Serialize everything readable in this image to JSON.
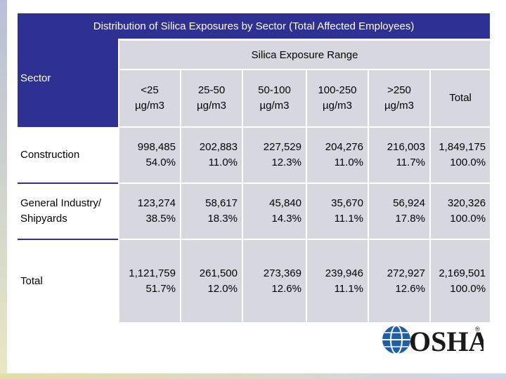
{
  "table": {
    "title": "Distribution of Silica Exposures by Sector (Total Affected Employees)",
    "sector_label": "Sector",
    "range_label": "Silica Exposure Range",
    "columns": [
      {
        "line1": "<25",
        "line2": "µg/m3"
      },
      {
        "line1": "25-50",
        "line2": "µg/m3"
      },
      {
        "line1": "50-100",
        "line2": "µg/m3"
      },
      {
        "line1": "100-250",
        "line2": "µg/m3"
      },
      {
        "line1": ">250",
        "line2": "µg/m3"
      },
      {
        "line1": "Total",
        "line2": ""
      }
    ],
    "rows": [
      {
        "label1": "Construction",
        "label2": "",
        "cells": [
          {
            "count": "998,485",
            "pct": "54.0%"
          },
          {
            "count": "202,883",
            "pct": "11.0%"
          },
          {
            "count": "227,529",
            "pct": "12.3%"
          },
          {
            "count": "204,276",
            "pct": "11.0%"
          },
          {
            "count": "216,003",
            "pct": "11.7%"
          },
          {
            "count": "1,849,175",
            "pct": "100.0%"
          }
        ]
      },
      {
        "label1": "General Industry/",
        "label2": "Shipyards",
        "cells": [
          {
            "count": "123,274",
            "pct": "38.5%"
          },
          {
            "count": "58,617",
            "pct": "18.3%"
          },
          {
            "count": "45,840",
            "pct": "14.3%"
          },
          {
            "count": "35,670",
            "pct": "11.1%"
          },
          {
            "count": "56,924",
            "pct": "17.8%"
          },
          {
            "count": "320,326",
            "pct": "100.0%"
          }
        ]
      },
      {
        "label1": "Total",
        "label2": "",
        "cells": [
          {
            "count": "1,121,759",
            "pct": "51.7%"
          },
          {
            "count": "261,500",
            "pct": "12.0%"
          },
          {
            "count": "273,369",
            "pct": "12.6%"
          },
          {
            "count": "239,946",
            "pct": "11.1%"
          },
          {
            "count": "272,927",
            "pct": "12.6%"
          },
          {
            "count": "2,169,501",
            "pct": "100.0%"
          }
        ]
      }
    ]
  },
  "logo": {
    "text": "OSHA",
    "mark": "®"
  },
  "colors": {
    "header_blue": "#2e3192",
    "cell_gray": "#d7d7e0",
    "logo_blue": "#1f5fa8"
  }
}
